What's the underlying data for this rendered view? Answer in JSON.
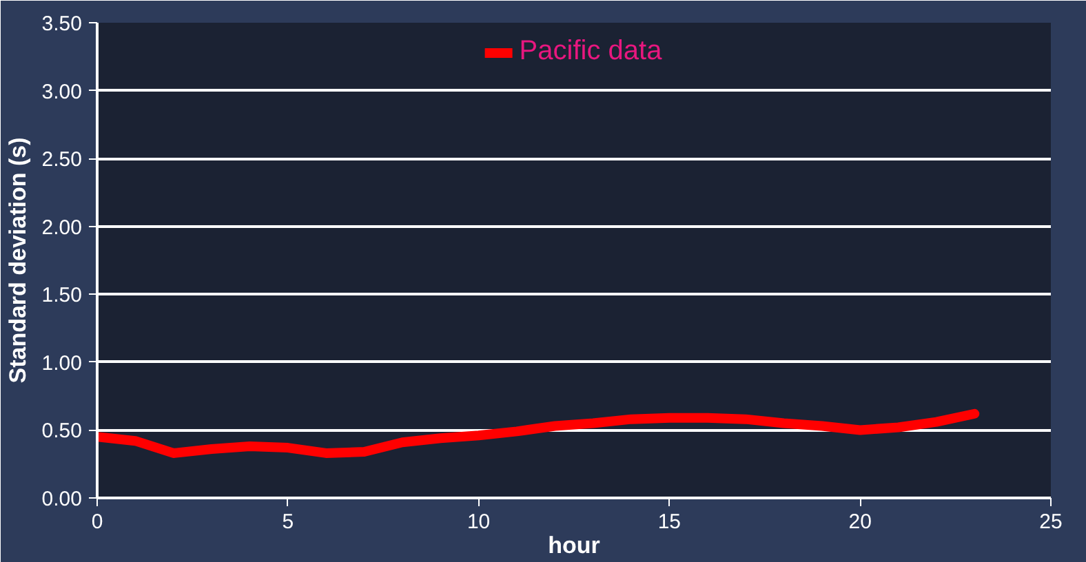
{
  "chart_data": {
    "type": "line",
    "xlabel": "hour",
    "ylabel": "Standard deviation (s)",
    "x": [
      0,
      1,
      2,
      3,
      4,
      5,
      6,
      7,
      8,
      9,
      10,
      11,
      12,
      13,
      14,
      15,
      16,
      17,
      18,
      19,
      20,
      21,
      22,
      23
    ],
    "series": [
      {
        "name": "Pacific data",
        "color": "#ff0000",
        "values": [
          0.45,
          0.42,
          0.33,
          0.36,
          0.38,
          0.37,
          0.33,
          0.34,
          0.41,
          0.44,
          0.46,
          0.49,
          0.53,
          0.55,
          0.58,
          0.59,
          0.59,
          0.58,
          0.55,
          0.53,
          0.5,
          0.52,
          0.56,
          0.62
        ]
      }
    ],
    "xlim": [
      0,
      25
    ],
    "xticks": [
      0,
      5,
      10,
      15,
      20,
      25
    ],
    "ylim": [
      0,
      3.5
    ],
    "yticks": [
      {
        "value": 0,
        "label": "0.00"
      },
      {
        "value": 0.5,
        "label": "0.50"
      },
      {
        "value": 1,
        "label": "1.00"
      },
      {
        "value": 1.5,
        "label": "1.50"
      },
      {
        "value": 2,
        "label": "2.00"
      },
      {
        "value": 2.5,
        "label": "2.50"
      },
      {
        "value": 3,
        "label": "3.00"
      },
      {
        "value": 3.5,
        "label": "3.50"
      }
    ],
    "grid": "y",
    "legend": "top",
    "marker": "none",
    "line_style": "solid"
  }
}
